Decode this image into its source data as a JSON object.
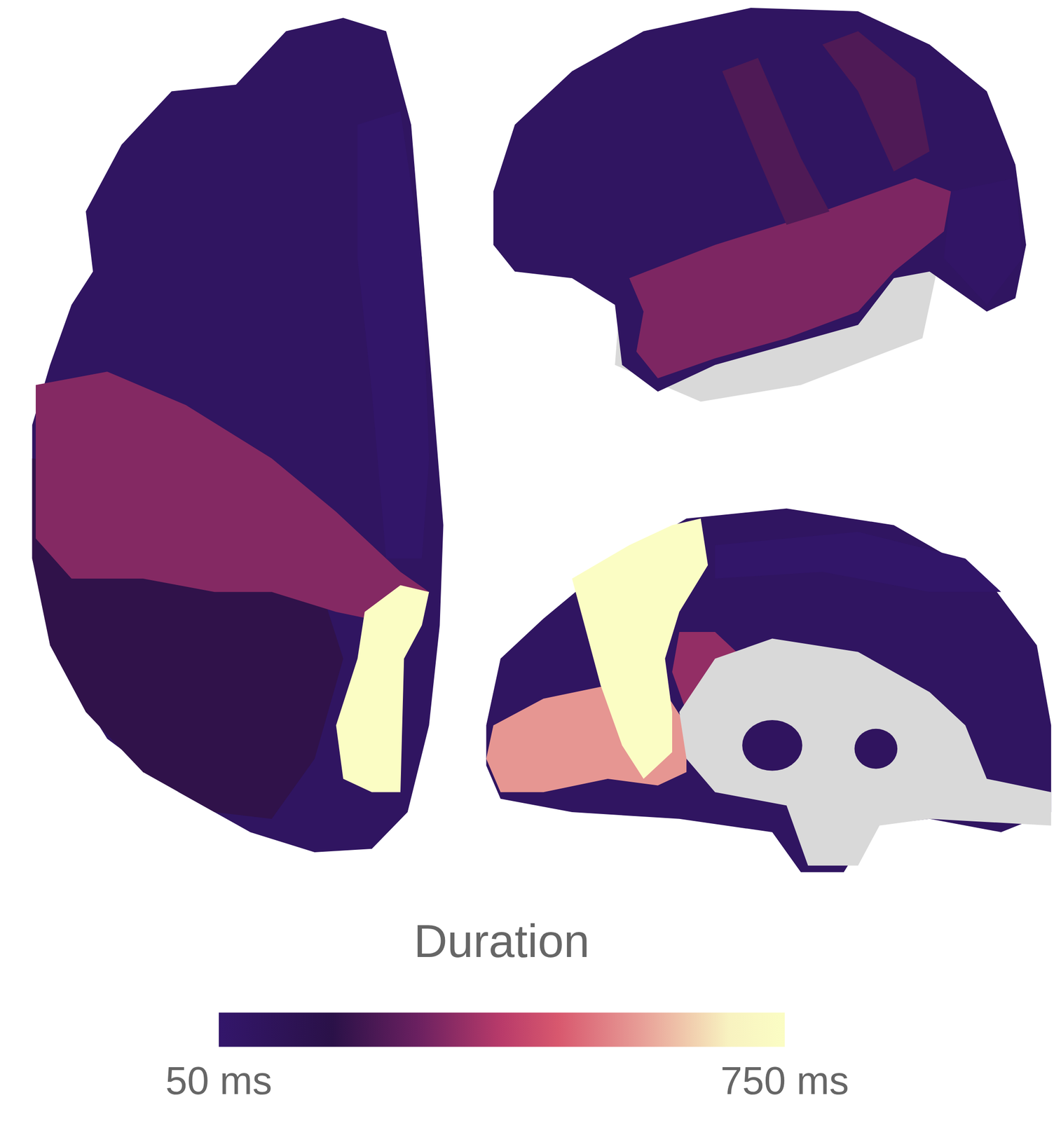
{
  "chart_data": {
    "type": "brain_map",
    "views": [
      [
        90,
        200,
        330,
        60,
        750
      ],
      [
        90,
        320,
        250,
        250,
        70
      ],
      [
        90,
        60,
        350,
        560,
        750,
        100,
        100
      ]
    ],
    "colorbar": {
      "title": "Duration",
      "range": [
        50,
        750
      ],
      "ticks": [
        {
          "value": 50,
          "label": "50 ms"
        },
        {
          "value": 750,
          "label": "750 ms"
        }
      ]
    }
  }
}
